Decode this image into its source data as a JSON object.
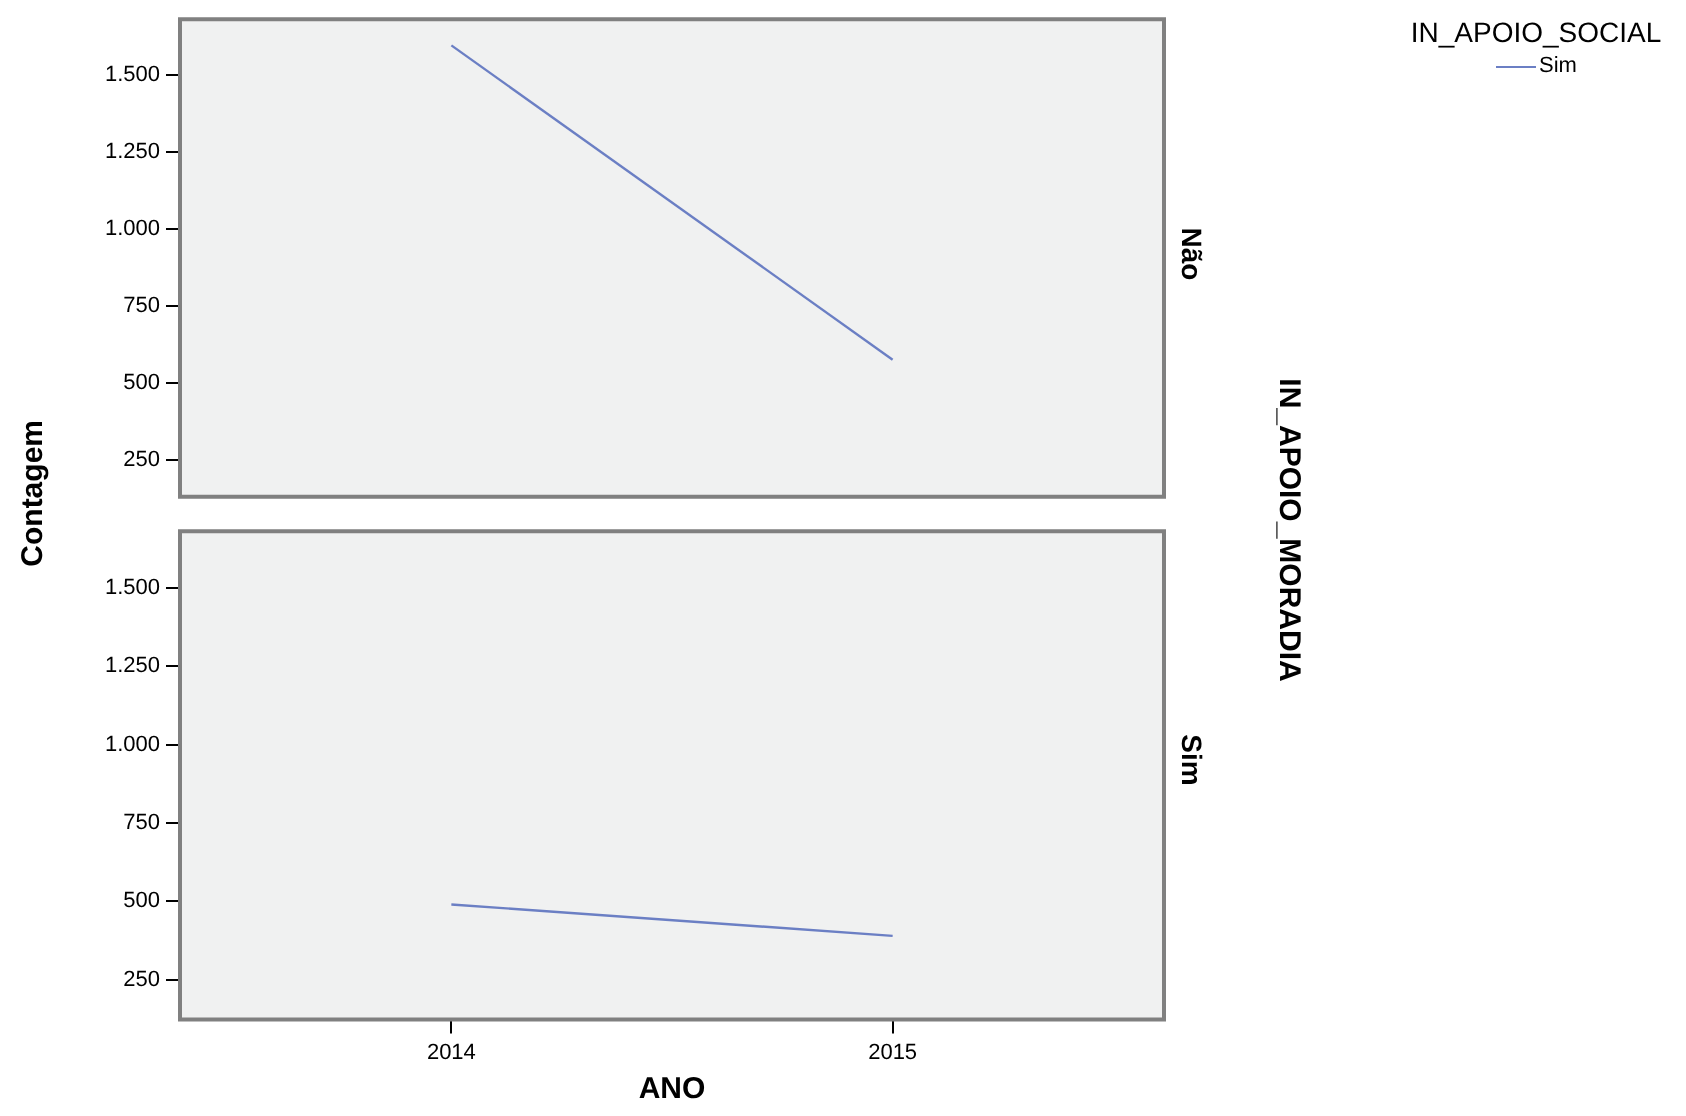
{
  "chart_data": [
    {
      "type": "line",
      "ylabel": "Contagem",
      "legend_title": "IN_APOIO_SOCIAL",
      "legend": "top right",
      "tick_labels": "y",
      "annotations": [
        "Não",
        "IN_APOIO_MORADIA"
      ],
      "categories": [
        "2014",
        "2015"
      ],
      "series": [
        {
          "name": "Sim",
          "color": "#6b7fc4",
          "values": [
            1595,
            575
          ]
        }
      ],
      "ylim": [
        130,
        1680
      ],
      "yticks": [
        250,
        500,
        750,
        {
          "value": 1000,
          "label": "1.000"
        },
        {
          "value": 1250,
          "label": "1.250"
        },
        {
          "value": 1500,
          "label": "1.500"
        }
      ]
    },
    {
      "type": "line",
      "xlabel": "ANO",
      "annotations": [
        "Sim"
      ],
      "categories": [
        "2014",
        "2015"
      ],
      "series": [
        {
          "color": "#6b7fc4",
          "values": [
            490,
            390
          ]
        }
      ],
      "ylim": [
        123,
        1680
      ],
      "yticks": [
        250,
        500,
        750,
        {
          "value": 1000,
          "label": "1.000"
        },
        {
          "value": 1250,
          "label": "1.250"
        },
        {
          "value": 1500,
          "label": "1.500"
        }
      ]
    }
  ]
}
